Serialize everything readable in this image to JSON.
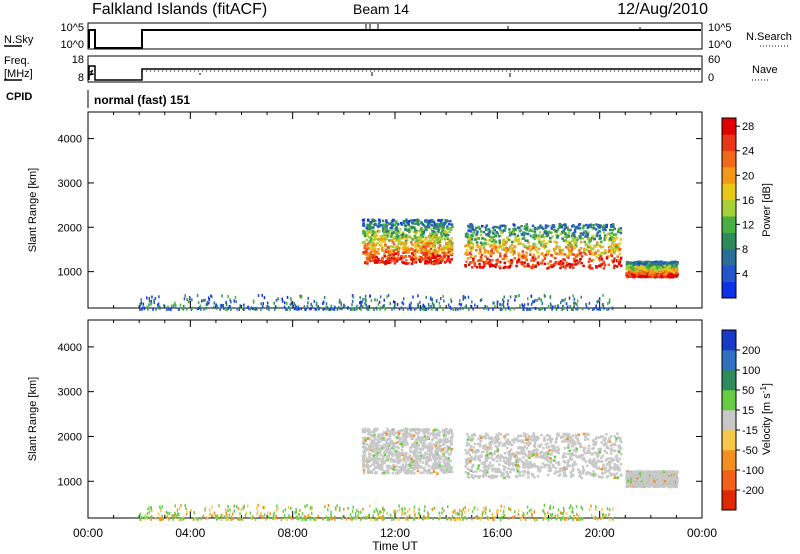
{
  "header": {
    "title": "Falkland Islands (fitACF)",
    "beam": "Beam 14",
    "date": "12/Aug/2010"
  },
  "strip_panels": {
    "nsky": {
      "left_label": "N.Sky",
      "left_ticks": [
        "10^5",
        "10^0"
      ],
      "right_ticks": [
        "10^5",
        "10^0"
      ],
      "right_label": "N.Search"
    },
    "freq": {
      "left_label_1": "Freq.",
      "left_label_2": "[MHz]",
      "left_ticks": [
        "18",
        "8"
      ],
      "right_ticks": [
        "60",
        "0"
      ],
      "right_label": "Nave"
    },
    "cpid": {
      "label": "CPID",
      "value": "normal (fast) 151"
    }
  },
  "chart_data": [
    {
      "type": "heatmap",
      "name": "power",
      "ylabel": "Slant Range [km]",
      "xlabel": "Time UT",
      "x_unit": "hours UT",
      "xlim": [
        0,
        24
      ],
      "ylim": [
        180,
        4600
      ],
      "yticks": [
        1000,
        2000,
        3000,
        4000
      ],
      "colorbar": {
        "label": "Power [dB]",
        "ticks": [
          "4",
          "8",
          "12",
          "16",
          "20",
          "24",
          "28"
        ],
        "colors": [
          "#1030e8",
          "#2255cc",
          "#2a6e9a",
          "#2e8a5a",
          "#48b040",
          "#a8d038",
          "#e8c818",
          "#f49818",
          "#f06818",
          "#e83818",
          "#e00000"
        ]
      },
      "echo_regions": [
        {
          "t_start": 10.7,
          "t_end": 14.2,
          "range_low": 1200,
          "range_high": 2200,
          "description": "strong echoes"
        },
        {
          "t_start": 14.7,
          "t_end": 20.8,
          "range_low": 1100,
          "range_high": 2100,
          "description": "strong echoes"
        },
        {
          "t_start": 21.0,
          "t_end": 23.0,
          "range_low": 900,
          "range_high": 1250,
          "description": "strong echoes"
        },
        {
          "t_start": 2.0,
          "t_end": 20.5,
          "range_low": 180,
          "range_high": 500,
          "description": "near-range ground scatter"
        }
      ]
    },
    {
      "type": "heatmap",
      "name": "velocity",
      "ylabel": "Slant Range [km]",
      "xlabel": "Time UT",
      "xlim": [
        0,
        24
      ],
      "ylim": [
        180,
        4600
      ],
      "yticks": [
        1000,
        2000,
        3000,
        4000
      ],
      "colorbar": {
        "label": "Velocity [m s-1]",
        "label_text": "Velocity [m s",
        "label_sup": "-1",
        "label_end": "]",
        "ticks": [
          "200",
          "100",
          "50",
          "15",
          "-15",
          "-50",
          "-100",
          "-200"
        ],
        "colors": [
          "#1838c8",
          "#3070c0",
          "#2f8b5c",
          "#66cc44",
          "#c8c8c8",
          "#f6c84a",
          "#f49020",
          "#f06018",
          "#e02800"
        ]
      }
    }
  ],
  "x_axis": {
    "ticks": [
      "00:00",
      "04:00",
      "08:00",
      "12:00",
      "16:00",
      "20:00",
      "00:00"
    ],
    "label": "Time UT"
  }
}
